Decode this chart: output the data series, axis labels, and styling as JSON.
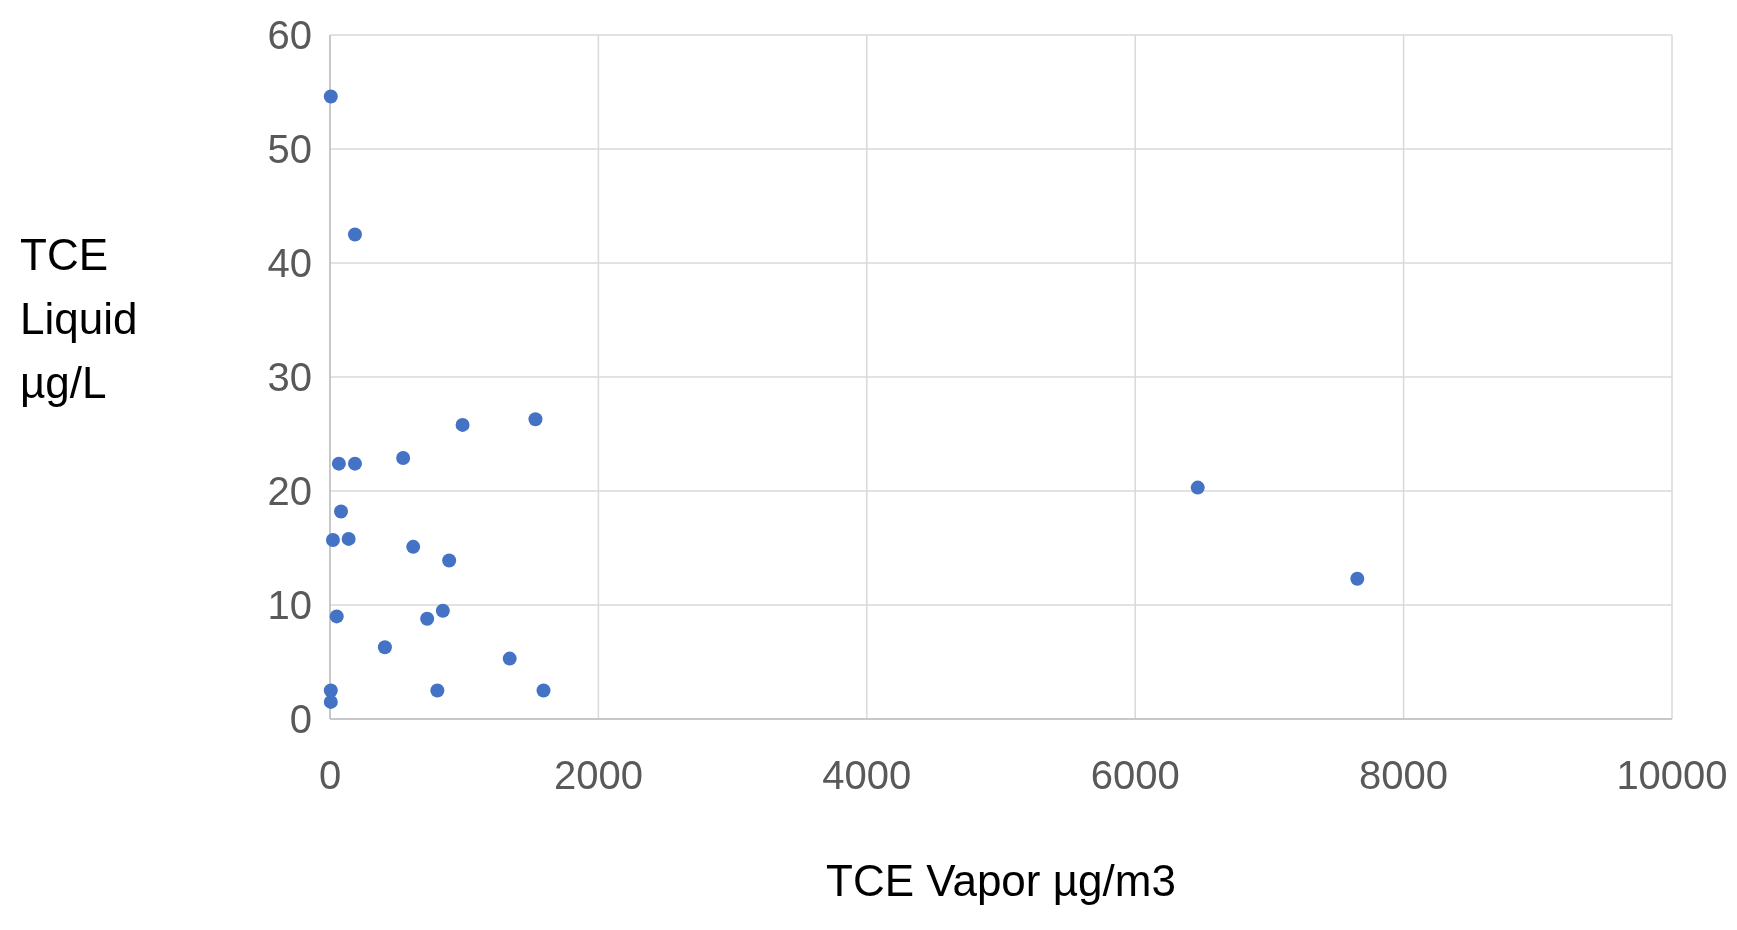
{
  "chart_data": {
    "type": "scatter",
    "xlabel": "TCE Vapor µg/m3",
    "ylabel": "TCE Liquid µg/L",
    "x": [
      6,
      186,
      988,
      1531,
      66,
      186,
      545,
      82,
      22,
      139,
      620,
      888,
      50,
      724,
      841,
      409,
      1339,
      6,
      6,
      800,
      1591,
      6466,
      7655
    ],
    "series": [
      {
        "color": "#4472c4",
        "values": [
          54.6,
          42.5,
          25.8,
          26.3,
          22.4,
          22.4,
          22.9,
          18.2,
          15.7,
          15.8,
          15.1,
          13.9,
          9.0,
          8.8,
          9.5,
          6.3,
          5.3,
          2.5,
          1.5,
          2.5,
          2.5,
          20.3,
          12.3
        ]
      }
    ],
    "xlim": [
      0,
      10000
    ],
    "xticks": [
      0,
      2000,
      4000,
      6000,
      8000,
      10000
    ],
    "ylim": [
      0,
      60
    ],
    "yticks": [
      0,
      10,
      20,
      30,
      40,
      50,
      60
    ],
    "grid": true,
    "marker": "circle"
  }
}
